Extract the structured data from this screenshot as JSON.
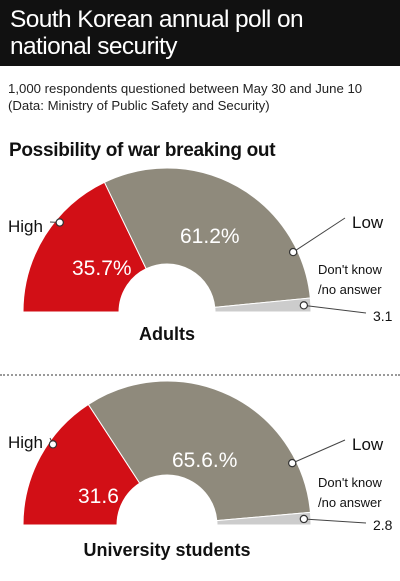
{
  "title": "South Korean annual poll on national security",
  "subtitle": "1,000 respondents questioned between May 30 and June 10",
  "source": "(Data: Ministry of Public Safety and Security)",
  "section_heading": "Possibility of war breaking out",
  "colors": {
    "high": "#d20f16",
    "low": "#8f8a7c",
    "dont_know": "#cccccc"
  },
  "chart_data": [
    {
      "type": "pie",
      "title": "Adults",
      "labels": [
        "High",
        "Low",
        "Don't know /no answer"
      ],
      "values": [
        35.7,
        61.2,
        3.1
      ],
      "value_labels": [
        "35.7%",
        "61.2%",
        "3.1"
      ]
    },
    {
      "type": "pie",
      "title": "University students",
      "labels": [
        "High",
        "Low",
        "Don't know /no answer"
      ],
      "values": [
        31.6,
        65.6,
        2.8
      ],
      "value_labels": [
        "31.6",
        "65.6.%",
        "2.8"
      ]
    }
  ]
}
